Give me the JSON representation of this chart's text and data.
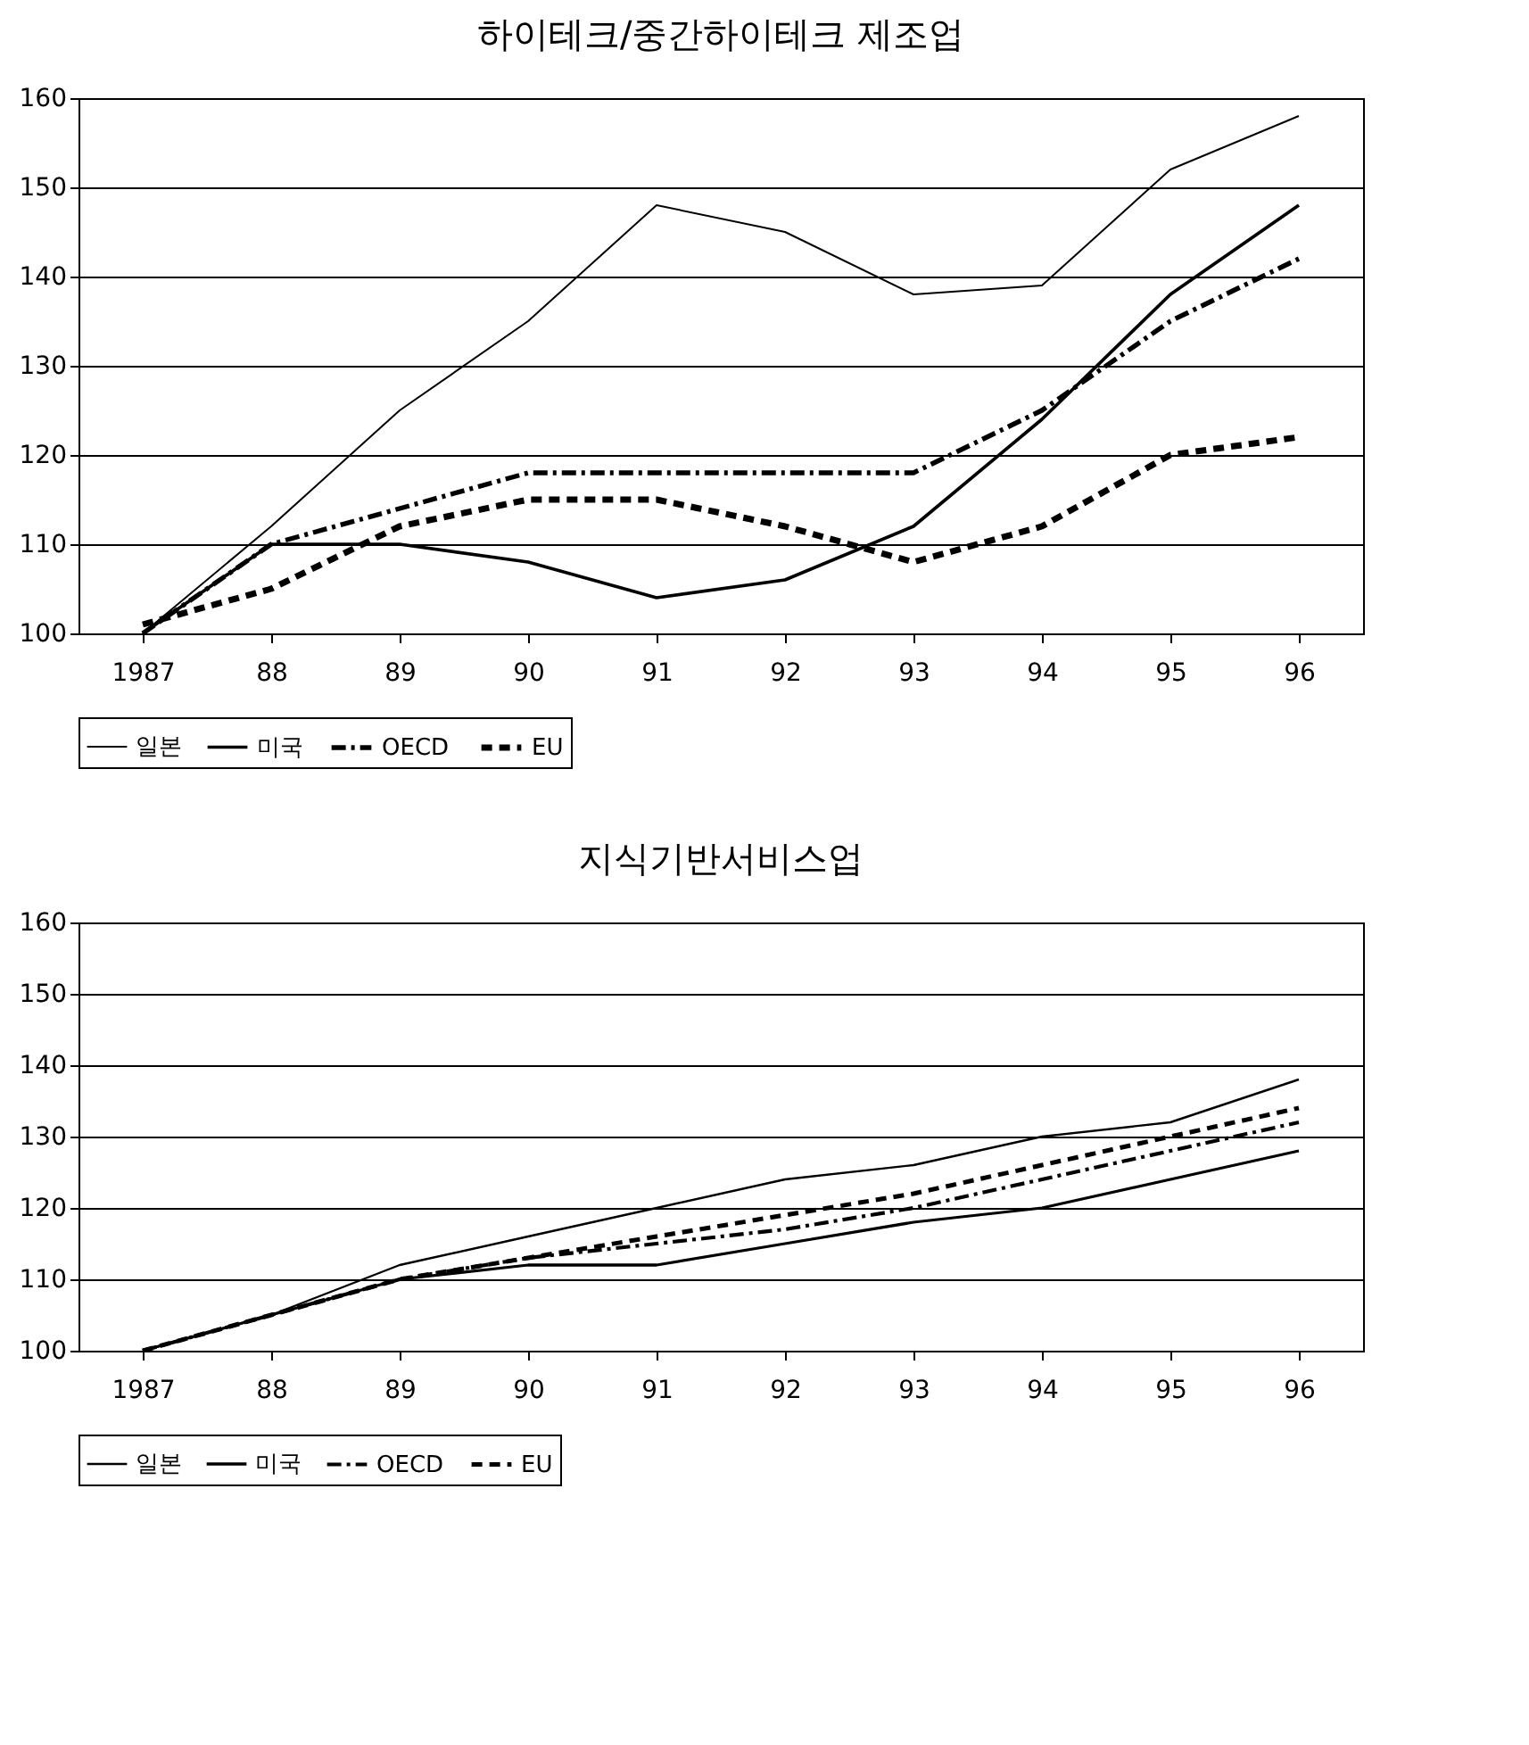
{
  "chart_data": [
    {
      "type": "line",
      "title": "하이테크/중간하이테크 제조업",
      "categories": [
        "1987",
        "88",
        "89",
        "90",
        "91",
        "92",
        "93",
        "94",
        "95",
        "96"
      ],
      "ylim": [
        100,
        160
      ],
      "yticks": [
        100,
        110,
        120,
        130,
        140,
        150,
        160
      ],
      "grid": "y",
      "legend": "bottom",
      "marker": "none",
      "series": [
        {
          "name": "일본",
          "color": "#000000",
          "line_style": "solid",
          "values": [
            100,
            112,
            125,
            135,
            148,
            145,
            138,
            139,
            152,
            158
          ]
        },
        {
          "name": "미국",
          "color": "#000000",
          "line_style": "solid",
          "values": [
            100,
            110,
            110,
            108,
            104,
            106,
            112,
            124,
            138,
            148
          ]
        },
        {
          "name": "OECD",
          "color": "#000000",
          "line_style": "dashdot",
          "values": [
            100,
            110,
            114,
            118,
            118,
            118,
            118,
            125,
            135,
            142
          ]
        },
        {
          "name": "EU",
          "color": "#000000",
          "line_style": "dashed",
          "values": [
            101,
            105,
            112,
            115,
            115,
            112,
            108,
            112,
            120,
            122
          ]
        }
      ]
    },
    {
      "type": "line",
      "title": "지식기반서비스업",
      "categories": [
        "1987",
        "88",
        "89",
        "90",
        "91",
        "92",
        "93",
        "94",
        "95",
        "96"
      ],
      "ylim": [
        100,
        160
      ],
      "yticks": [
        100,
        110,
        120,
        130,
        140,
        150,
        160
      ],
      "grid": "y",
      "legend": "bottom",
      "marker": "none",
      "series": [
        {
          "name": "일본",
          "color": "#000000",
          "line_style": "solid",
          "values": [
            100,
            105,
            112,
            116,
            120,
            124,
            126,
            130,
            132,
            138
          ]
        },
        {
          "name": "미국",
          "color": "#000000",
          "line_style": "solid",
          "values": [
            100,
            105,
            110,
            112,
            112,
            115,
            118,
            120,
            124,
            128
          ]
        },
        {
          "name": "OECD",
          "color": "#000000",
          "line_style": "dashdot",
          "values": [
            100,
            105,
            110,
            113,
            115,
            117,
            120,
            124,
            128,
            132
          ]
        },
        {
          "name": "EU",
          "color": "#000000",
          "line_style": "dashed",
          "values": [
            100,
            105,
            110,
            113,
            116,
            119,
            122,
            126,
            130,
            134
          ]
        }
      ]
    }
  ]
}
